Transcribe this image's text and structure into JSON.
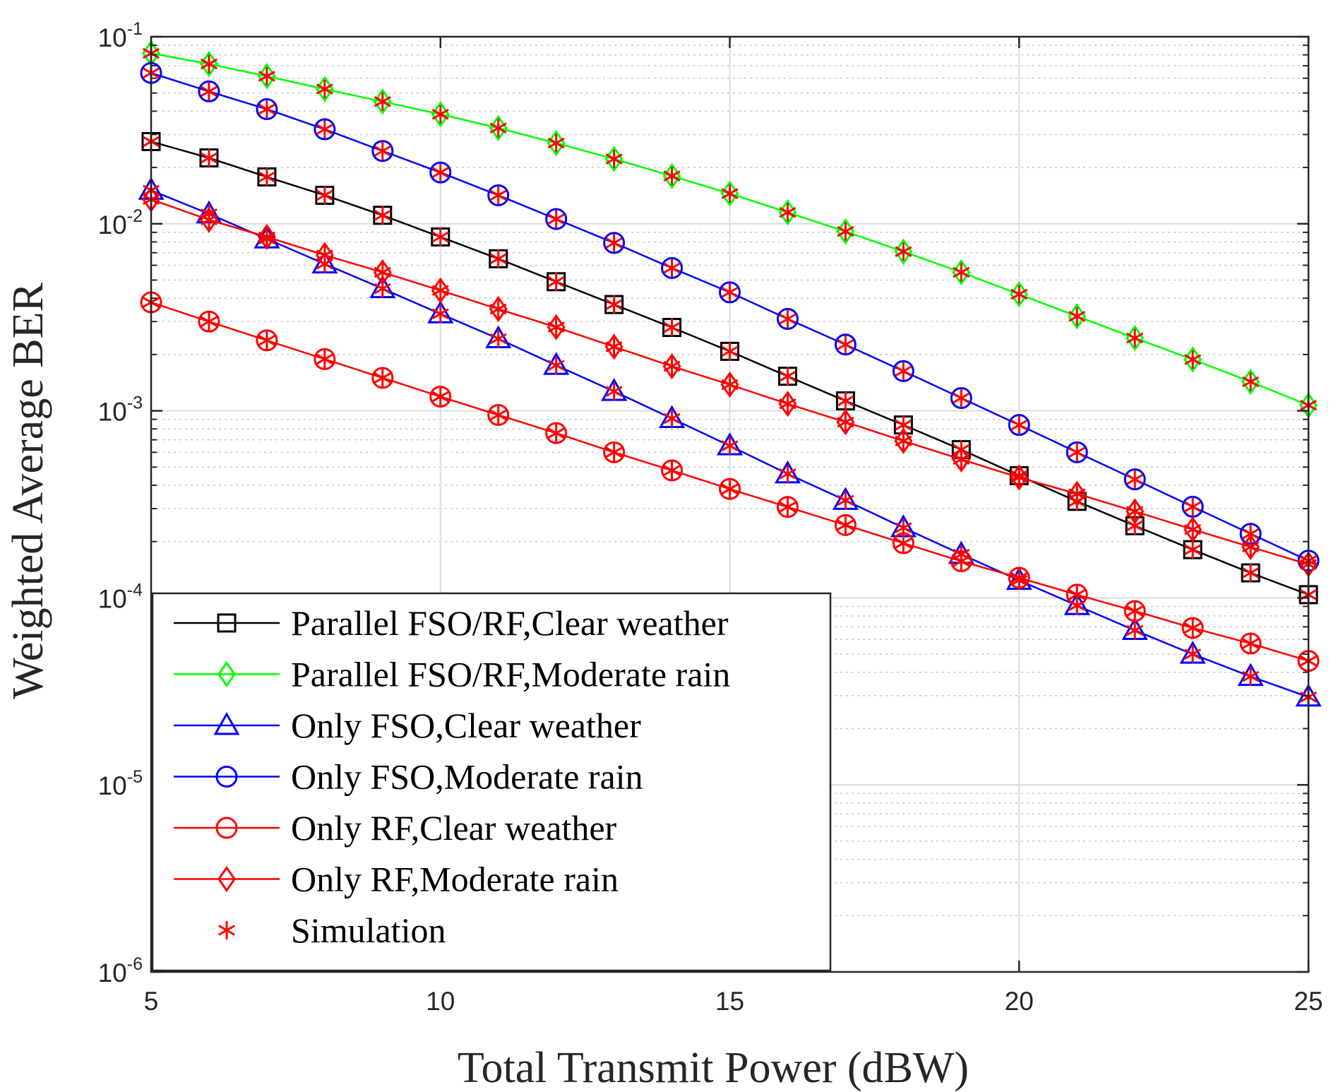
{
  "chart_data": {
    "type": "line",
    "title": "",
    "xlabel": "Total Transmit Power (dBW)",
    "ylabel": "Weighted Average BER",
    "yscale": "log",
    "xlim": [
      5,
      25
    ],
    "ylim": [
      1e-06,
      0.1
    ],
    "grid": true,
    "minor_grid": true,
    "legend_position": "bottom-left",
    "x_ticks": [
      {
        "value": 5,
        "label": "5"
      },
      {
        "value": 10,
        "label": "10"
      },
      {
        "value": 15,
        "label": "15"
      },
      {
        "value": 20,
        "label": "20"
      },
      {
        "value": 25,
        "label": "25"
      }
    ],
    "y_ticks": [
      {
        "value": 1e-06,
        "base": "10",
        "exp": "-6"
      },
      {
        "value": 1e-05,
        "base": "10",
        "exp": "-5"
      },
      {
        "value": 0.0001,
        "base": "10",
        "exp": "-4"
      },
      {
        "value": 0.001,
        "base": "10",
        "exp": "-3"
      },
      {
        "value": 0.01,
        "base": "10",
        "exp": "-2"
      },
      {
        "value": 0.1,
        "base": "10",
        "exp": "-1"
      }
    ],
    "x": [
      5,
      6,
      7,
      8,
      9,
      10,
      11,
      12,
      13,
      14,
      15,
      16,
      17,
      18,
      19,
      20,
      21,
      22,
      23,
      24,
      25
    ],
    "series": [
      {
        "name": "Parallel FSO/RF,Clear weather",
        "color": "#000000",
        "marker": "square",
        "values": [
          0.0275,
          0.0225,
          0.0178,
          0.0142,
          0.0111,
          0.0085,
          0.0065,
          0.0049,
          0.0037,
          0.00279,
          0.00208,
          0.00153,
          0.00113,
          0.00084,
          0.00062,
          0.00045,
          0.000328,
          0.000243,
          0.000181,
          0.000136,
          0.000104
        ]
      },
      {
        "name": "Parallel FSO/RF,Moderate rain",
        "color": "#00ff00",
        "marker": "diamond",
        "values": [
          0.0815,
          0.0715,
          0.0615,
          0.0525,
          0.045,
          0.0385,
          0.0325,
          0.027,
          0.0222,
          0.018,
          0.0145,
          0.0115,
          0.0091,
          0.0071,
          0.0055,
          0.0042,
          0.0032,
          0.00245,
          0.00188,
          0.00143,
          0.00107
        ]
      },
      {
        "name": "Only FSO,Clear weather",
        "color": "#0000ff",
        "marker": "triangle",
        "values": [
          0.0151,
          0.0113,
          0.0083,
          0.0061,
          0.0045,
          0.0033,
          0.00243,
          0.00175,
          0.00127,
          0.00091,
          0.00065,
          0.00046,
          0.000332,
          0.000237,
          0.000171,
          0.000124,
          9.1e-05,
          6.7e-05,
          5e-05,
          3.8e-05,
          2.95e-05
        ]
      },
      {
        "name": "Only FSO,Moderate rain",
        "color": "#0000ff",
        "marker": "circle",
        "values": [
          0.064,
          0.051,
          0.041,
          0.032,
          0.0245,
          0.0188,
          0.0142,
          0.0106,
          0.0079,
          0.0058,
          0.0043,
          0.0031,
          0.00226,
          0.00163,
          0.00117,
          0.00084,
          0.0006,
          0.00043,
          0.000307,
          0.00022,
          0.000158
        ]
      },
      {
        "name": "Only RF,Clear weather",
        "color": "#ff0000",
        "marker": "circle",
        "values": [
          0.0038,
          0.003,
          0.00238,
          0.00189,
          0.0015,
          0.00119,
          0.00095,
          0.00076,
          0.0006,
          0.00048,
          0.000382,
          0.000306,
          0.000245,
          0.000196,
          0.000157,
          0.000128,
          0.000104,
          8.5e-05,
          6.9e-05,
          5.7e-05,
          4.6e-05
        ]
      },
      {
        "name": "Only RF,Moderate rain",
        "color": "#ff0000",
        "marker": "diamond",
        "values": [
          0.0135,
          0.0105,
          0.0085,
          0.0068,
          0.0055,
          0.0044,
          0.0035,
          0.0028,
          0.0022,
          0.00173,
          0.00138,
          0.00109,
          0.00087,
          0.00069,
          0.00055,
          0.00044,
          0.00036,
          0.00029,
          0.000232,
          0.000187,
          0.000151
        ]
      }
    ],
    "legend": [
      {
        "label": "Parallel FSO/RF,Clear weather",
        "color": "#000000",
        "marker": "square",
        "line": true
      },
      {
        "label": "Parallel FSO/RF,Moderate rain",
        "color": "#00ff00",
        "marker": "diamond",
        "line": true
      },
      {
        "label": "Only FSO,Clear weather",
        "color": "#0000ff",
        "marker": "triangle",
        "line": true
      },
      {
        "label": "Only FSO,Moderate rain",
        "color": "#0000ff",
        "marker": "circle",
        "line": true
      },
      {
        "label": "Only RF,Clear weather",
        "color": "#ff0000",
        "marker": "circle",
        "line": true
      },
      {
        "label": "Only RF,Moderate rain",
        "color": "#ff0000",
        "marker": "diamond",
        "line": true
      },
      {
        "label": "Simulation",
        "color": "#ff0000",
        "marker": "asterisk",
        "line": false
      }
    ],
    "simulation_marker_color": "#ff0000"
  }
}
